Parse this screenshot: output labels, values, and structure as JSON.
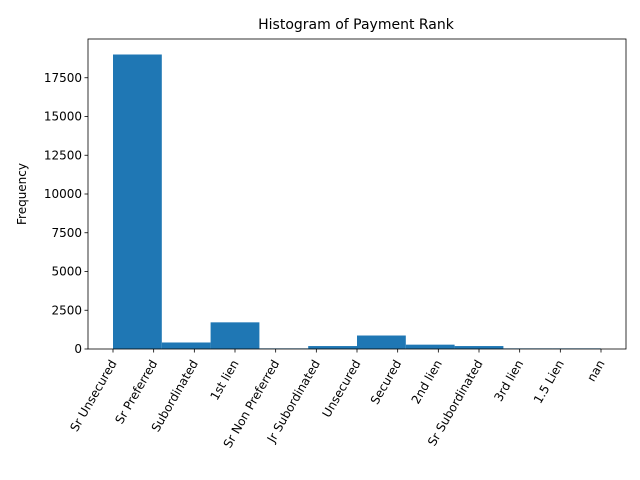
{
  "chart_data": {
    "type": "bar",
    "title": "Histogram of Payment Rank",
    "xlabel": "",
    "ylabel": "Frequency",
    "ylim": [
      0,
      20000
    ],
    "yticks": [
      0,
      2500,
      5000,
      7500,
      10000,
      12500,
      15000,
      17500
    ],
    "categories": [
      "Sr Unsecured",
      "Sr Preferred",
      "Subordinated",
      "1st lien",
      "Sr Non Preferred",
      "Jr Subordinated",
      "Unsecured",
      "Secured",
      "2nd lien",
      "Sr Subordinated",
      "3rd lien",
      "1.5 Lien",
      "nan"
    ],
    "bins": [
      {
        "value": 19000
      },
      {
        "value": 420
      },
      {
        "value": 1720
      },
      {
        "value": 40
      },
      {
        "value": 190
      },
      {
        "value": 870
      },
      {
        "value": 280
      },
      {
        "value": 190
      },
      {
        "value": 40
      },
      {
        "value": 40
      }
    ],
    "bar_color": "#1f77b4",
    "grid": false,
    "legend": "none"
  }
}
